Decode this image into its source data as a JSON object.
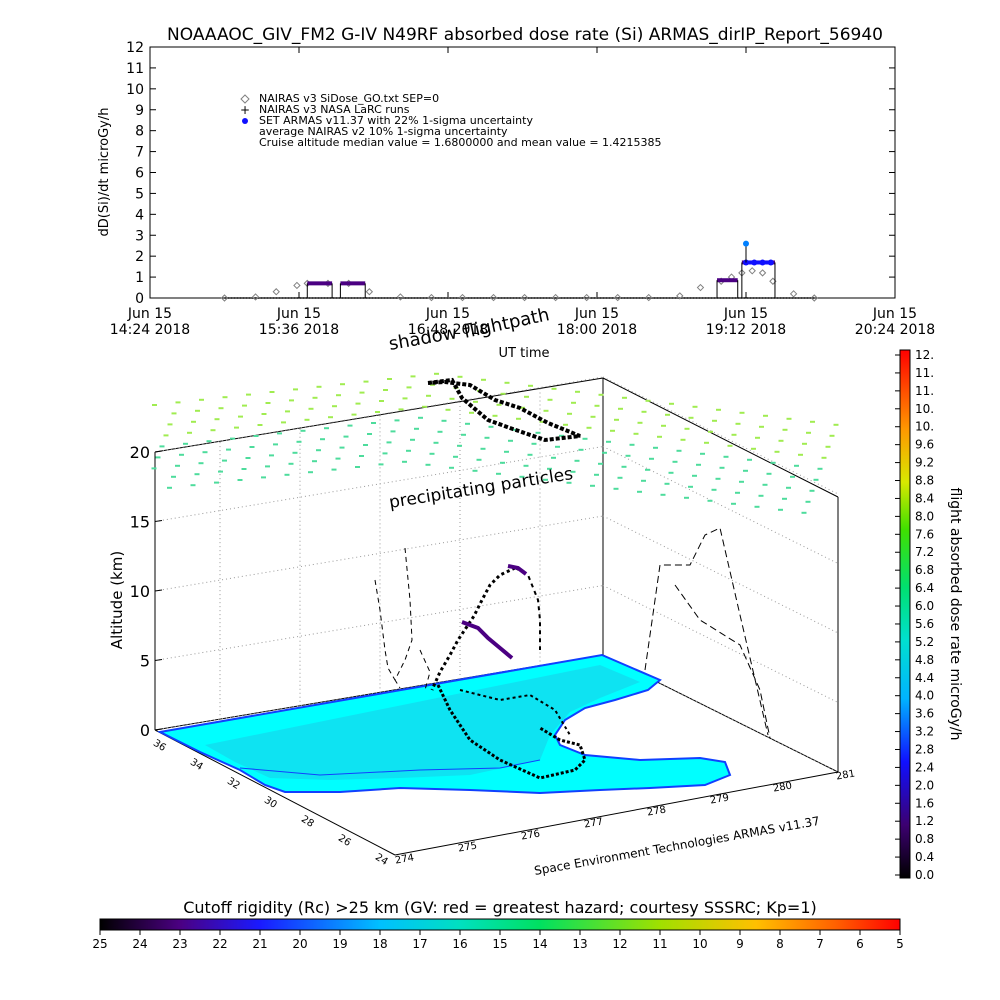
{
  "header": {
    "title": "NOAAAOC_GIV_FM2 G-IV   N49RF  absorbed dose rate (Si) ARMAS_dirIP_Report_56940"
  },
  "legend": {
    "items": [
      {
        "label": "NAIRAS v3 SiDose_GO.txt SEP=0",
        "color": "#808080",
        "marker": "diamond"
      },
      {
        "label": "NAIRAS v3 NASA LaRC runs",
        "color": "#000000",
        "marker": "plus"
      },
      {
        "label": "SET ARMAS v11.37 with 22% 1-sigma uncertainty",
        "color": "#1010ff",
        "marker": "dot"
      },
      {
        "label": "average NAIRAS v2 10% 1-sigma uncertainty",
        "color": "#000000",
        "marker": "none"
      },
      {
        "label": "Cruise altitude median value = 1.6800000 and mean value = 1.4215385",
        "color": "#000000",
        "marker": "none"
      }
    ]
  },
  "labels": {
    "shadow": "shadow",
    "flightpath": "flightpath",
    "precip": "precipitating particles",
    "credit": "Space Environment Technologies ARMAS v11.37",
    "colorbar_title": "flight absorbed dose rate microGy/h",
    "rc_title": "Cutoff rigidity (Rc) >25 km (GV: red = greatest hazard; courtesy SSSRC; Kp=1)"
  },
  "colors": {
    "sea": "#00ffff",
    "land": "#18d0ea",
    "coast": "#1040ff",
    "nairas": "#808080",
    "armas": "#1010ff",
    "bins": "#4b0082",
    "grid_particles": "#4ddc9c"
  },
  "chart_data": [
    {
      "type": "scatter",
      "ylabel": "dD(Si)/dt microGy/h",
      "xlabel": "UT time",
      "ylim": [
        0,
        12
      ],
      "yticks": [
        "0",
        "1",
        "2",
        "3",
        "4",
        "5",
        "6",
        "7",
        "8",
        "9",
        "10",
        "11",
        "12"
      ],
      "xticks": [
        {
          "line1": "Jun 15",
          "line2": "14:24 2018"
        },
        {
          "line1": "Jun 15",
          "line2": "15:36 2018"
        },
        {
          "line1": "Jun 15",
          "line2": "16:48 2018"
        },
        {
          "line1": "Jun 15",
          "line2": "18:00 2018"
        },
        {
          "line1": "Jun 15",
          "line2": "19:12 2018"
        },
        {
          "line1": "Jun 15",
          "line2": "20:24 2018"
        }
      ],
      "series": [
        {
          "name": "NAIRAS v3 SiDose_GO.txt SEP=0",
          "x": [
            "15:00",
            "15:15",
            "15:25",
            "15:35",
            "15:40",
            "15:50",
            "16:00",
            "16:10",
            "16:25",
            "16:40",
            "16:55",
            "17:10",
            "17:25",
            "17:40",
            "17:55",
            "18:10",
            "18:25",
            "18:40",
            "18:50",
            "19:00",
            "19:05",
            "19:10",
            "19:15",
            "19:20",
            "19:25",
            "19:35",
            "19:45"
          ],
          "y": [
            0,
            0.05,
            0.3,
            0.6,
            0.7,
            0.7,
            0.7,
            0.3,
            0.05,
            0.02,
            0.02,
            0.02,
            0.02,
            0.02,
            0.02,
            0.02,
            0.02,
            0.1,
            0.5,
            0.8,
            1.0,
            1.2,
            1.3,
            1.2,
            0.8,
            0.2,
            0
          ]
        },
        {
          "name": "SET ARMAS v11.37 with 22% 1-sigma uncertainty",
          "x": [
            "19:12",
            "19:16",
            "19:20",
            "19:24"
          ],
          "y": [
            1.7,
            1.7,
            1.7,
            1.7
          ]
        },
        {
          "name": "ARMAS peak",
          "x": [
            "19:12"
          ],
          "y": [
            2.6
          ]
        }
      ],
      "bins": [
        {
          "x_start": "15:40",
          "x_end": "15:52",
          "y": 0.7
        },
        {
          "x_start": "15:56",
          "x_end": "16:08",
          "y": 0.7
        },
        {
          "x_start": "18:58",
          "x_end": "19:08",
          "y": 0.85
        },
        {
          "x_start": "19:10",
          "x_end": "19:26",
          "y": 1.7
        }
      ]
    },
    {
      "type": "scatter",
      "title": "",
      "zlabel": "Altitude (km)",
      "zticks": [
        "0",
        "5",
        "10",
        "15",
        "20"
      ],
      "lat_ticks": [
        "36",
        "34",
        "32",
        "30",
        "28",
        "26",
        "24"
      ],
      "lon_ticks": [
        "274",
        "275",
        "276",
        "277",
        "278",
        "279",
        "280",
        "281"
      ]
    }
  ],
  "colorbar": {
    "ticks": [
      "12.",
      "11.",
      "11.",
      "10.",
      "10.",
      "9.6",
      "9.2",
      "8.8",
      "8.4",
      "8.0",
      "7.6",
      "7.2",
      "6.8",
      "6.4",
      "6.0",
      "5.6",
      "5.2",
      "4.8",
      "4.4",
      "4.0",
      "3.6",
      "3.2",
      "2.8",
      "2.4",
      "2.0",
      "1.6",
      "1.2",
      "0.8",
      "0.4",
      "0.0"
    ]
  },
  "rc_bar": {
    "ticks": [
      "25",
      "24",
      "23",
      "22",
      "21",
      "20",
      "19",
      "18",
      "17",
      "16",
      "15",
      "14",
      "13",
      "12",
      "11",
      "10",
      "9",
      "8",
      "7",
      "6",
      "5"
    ]
  }
}
